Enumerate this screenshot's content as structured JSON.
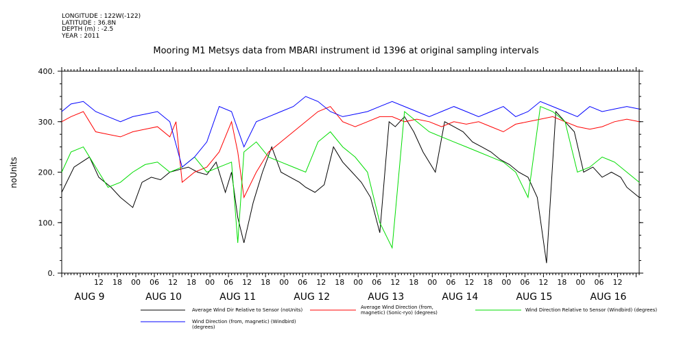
{
  "header": {
    "meta_lines": [
      "LONGITUDE : 122W(-122)",
      "LATITUDE : 36.8N",
      "DEPTH (m) : -2.5",
      "YEAR : 2011"
    ],
    "title": "Mooring M1 Metsys data from MBARI instrument id 1396 at original sampling intervals"
  },
  "chart_data": {
    "type": "line",
    "title": "Mooring M1 Metsys data from MBARI instrument id 1396 at original sampling intervals",
    "ylabel": "noUnits",
    "ylim": [
      0,
      400
    ],
    "yticks": [
      0,
      100,
      200,
      300,
      400
    ],
    "ytick_labels": [
      "0.",
      "100.",
      "200.",
      "300.",
      "400."
    ],
    "xlim_hours": [
      -9,
      178
    ],
    "xtick_hours": [
      3,
      9,
      15,
      21,
      27,
      33,
      39,
      45,
      51,
      57,
      63,
      69,
      75,
      81,
      87,
      93,
      99,
      105,
      111,
      117,
      123,
      129,
      135,
      141,
      147,
      153,
      159,
      165,
      171
    ],
    "xtick_labels": [
      "12",
      "18",
      "00",
      "06",
      "12",
      "18",
      "00",
      "06",
      "12",
      "18",
      "00",
      "06",
      "12",
      "18",
      "00",
      "06",
      "12",
      "18",
      "00",
      "06",
      "12",
      "18",
      "00",
      "06",
      "12",
      "18",
      "00",
      "06",
      "12"
    ],
    "day_labels": [
      "AUG 9",
      "AUG 10",
      "AUG 11",
      "AUG 12",
      "AUG 13",
      "AUG 14",
      "AUG 15",
      "AUG 16"
    ],
    "day_label_hours": [
      0,
      24,
      48,
      72,
      96,
      120,
      144,
      168
    ],
    "grid": false,
    "legend_position": "bottom",
    "series": [
      {
        "name": "Average Wind Dir Relative to Sensor (noUnits)",
        "color": "#000000",
        "x": [
          -9,
          -5,
          0,
          3,
          7,
          10,
          14,
          17,
          20,
          23,
          26,
          29,
          32,
          35,
          38,
          41,
          44,
          46,
          48,
          50,
          53,
          56,
          59,
          62,
          65,
          68,
          70,
          73,
          76,
          79,
          82,
          85,
          88,
          91,
          94,
          97,
          99,
          102,
          105,
          108,
          112,
          115,
          118,
          121,
          124,
          127,
          130,
          133,
          136,
          139,
          142,
          145,
          148,
          151,
          154,
          157,
          160,
          163,
          166,
          169,
          172,
          174,
          176,
          178
        ],
        "y": [
          160,
          210,
          230,
          190,
          170,
          150,
          130,
          180,
          190,
          185,
          200,
          205,
          210,
          200,
          195,
          220,
          160,
          200,
          110,
          60,
          140,
          200,
          250,
          200,
          190,
          180,
          170,
          160,
          175,
          250,
          220,
          200,
          180,
          150,
          80,
          300,
          290,
          310,
          280,
          240,
          200,
          300,
          290,
          280,
          260,
          250,
          240,
          225,
          215,
          200,
          190,
          150,
          20,
          320,
          300,
          280,
          200,
          210,
          190,
          200,
          190,
          170,
          160,
          150
        ]
      },
      {
        "name": "Average Wind Direction (from, magnetic) (Sonic-ryo) (degrees)",
        "color": "#ff0000",
        "x": [
          -9,
          -6,
          -2,
          2,
          6,
          10,
          14,
          18,
          22,
          26,
          28,
          30,
          34,
          38,
          42,
          46,
          48,
          50,
          54,
          58,
          62,
          66,
          70,
          74,
          78,
          82,
          86,
          90,
          94,
          98,
          102,
          106,
          110,
          114,
          118,
          122,
          126,
          130,
          134,
          138,
          142,
          146,
          150,
          154,
          158,
          162,
          166,
          170,
          174,
          178
        ],
        "y": [
          300,
          310,
          320,
          280,
          275,
          270,
          280,
          285,
          290,
          270,
          300,
          180,
          200,
          210,
          240,
          300,
          240,
          150,
          200,
          240,
          260,
          280,
          300,
          320,
          330,
          300,
          290,
          300,
          310,
          310,
          300,
          305,
          300,
          290,
          300,
          295,
          300,
          290,
          280,
          295,
          300,
          305,
          310,
          300,
          290,
          285,
          290,
          300,
          305,
          300
        ]
      },
      {
        "name": "Wind Direction Relative to Sensor (Windbird) (degrees)",
        "color": "#00dd00",
        "x": [
          -9,
          -6,
          -2,
          2,
          6,
          10,
          14,
          18,
          22,
          26,
          30,
          34,
          38,
          42,
          46,
          48,
          50,
          54,
          58,
          62,
          66,
          70,
          74,
          78,
          82,
          86,
          90,
          94,
          98,
          102,
          106,
          110,
          114,
          118,
          122,
          126,
          130,
          134,
          138,
          142,
          146,
          150,
          154,
          158,
          162,
          166,
          170,
          174,
          178
        ],
        "y": [
          200,
          240,
          250,
          210,
          170,
          180,
          200,
          215,
          220,
          200,
          210,
          230,
          200,
          210,
          220,
          60,
          240,
          260,
          230,
          220,
          210,
          200,
          260,
          280,
          250,
          230,
          200,
          100,
          50,
          320,
          300,
          280,
          270,
          260,
          250,
          240,
          230,
          220,
          200,
          150,
          330,
          320,
          300,
          200,
          210,
          230,
          220,
          200,
          180
        ]
      },
      {
        "name": "Wind Direction (from, magnetic) (Windbird) (degrees)",
        "color": "#0000ff",
        "x": [
          -9,
          -6,
          -2,
          2,
          6,
          10,
          14,
          18,
          22,
          26,
          30,
          34,
          38,
          42,
          46,
          50,
          54,
          58,
          62,
          66,
          70,
          74,
          78,
          82,
          86,
          90,
          94,
          98,
          102,
          106,
          110,
          114,
          118,
          122,
          126,
          130,
          134,
          138,
          142,
          146,
          150,
          154,
          158,
          162,
          166,
          170,
          174,
          178
        ],
        "y": [
          320,
          335,
          340,
          320,
          310,
          300,
          310,
          315,
          320,
          300,
          210,
          230,
          260,
          330,
          320,
          250,
          300,
          310,
          320,
          330,
          350,
          340,
          320,
          310,
          315,
          320,
          330,
          340,
          330,
          320,
          310,
          320,
          330,
          320,
          310,
          320,
          330,
          310,
          320,
          340,
          330,
          320,
          310,
          330,
          320,
          325,
          330,
          325
        ]
      }
    ]
  }
}
